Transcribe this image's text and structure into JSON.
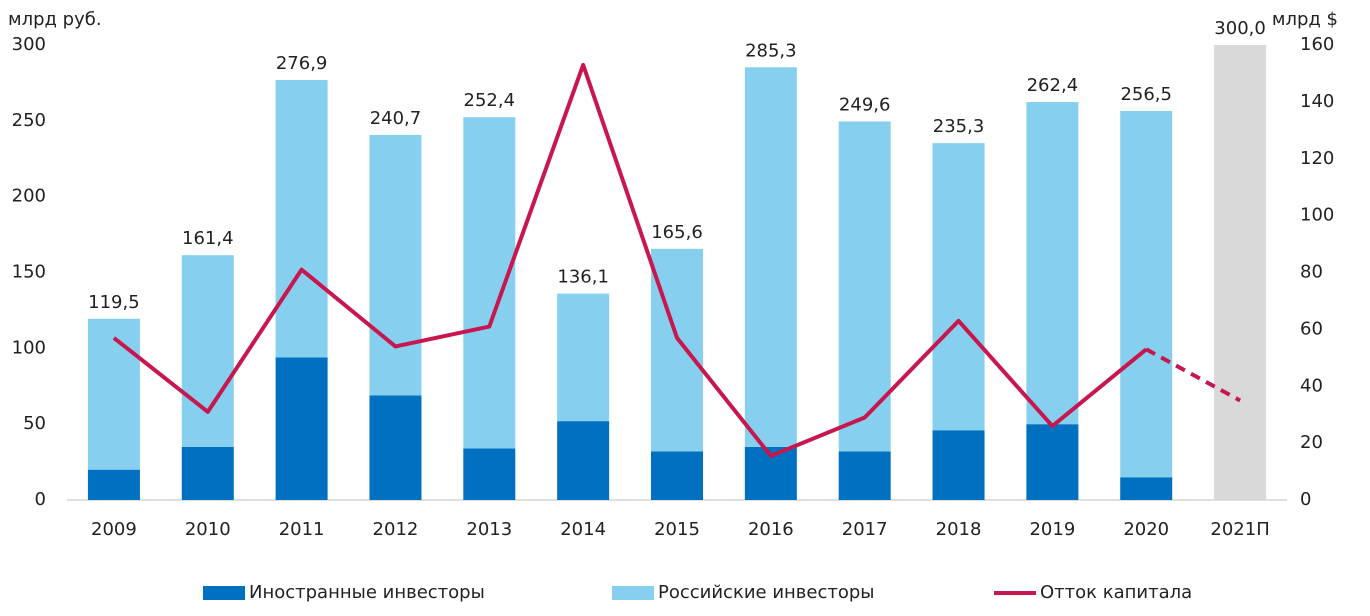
{
  "chart_data": {
    "type": "bar",
    "stacked": true,
    "ylabel": "млрд руб.",
    "y2label": "млрд $",
    "categories": [
      "2009",
      "2010",
      "2011",
      "2012",
      "2013",
      "2014",
      "2015",
      "2016",
      "2017",
      "2018",
      "2019",
      "2020",
      "2021П"
    ],
    "series": [
      {
        "name": "Иностранные инвесторы",
        "color": "#0070c0",
        "type": "bar",
        "values": [
          20,
          35,
          94,
          69,
          34,
          52,
          32,
          35,
          32,
          46,
          50,
          15,
          null
        ]
      },
      {
        "name": "Российские инвесторы",
        "color": "#87cfee",
        "type": "bar",
        "values": [
          99.5,
          126.4,
          182.9,
          171.7,
          218.4,
          84.1,
          133.6,
          250.3,
          217.6,
          189.3,
          212.4,
          241.5,
          null
        ]
      },
      {
        "name": "Отток капитала",
        "color": "#c8174f",
        "type": "line",
        "axis": "y2",
        "values": [
          57,
          31,
          81,
          54,
          61,
          153,
          57,
          15.5,
          29,
          63,
          26,
          53,
          35
        ]
      }
    ],
    "totals": {
      "values": [
        119.5,
        161.4,
        276.9,
        240.7,
        252.4,
        136.1,
        165.6,
        285.3,
        249.6,
        235.3,
        262.4,
        256.5,
        300
      ],
      "value_labels": [
        "119,5",
        "161,4",
        "276,9",
        "240,7",
        "252,4",
        "136,1",
        "165,6",
        "285,3",
        "249,6",
        "235,3",
        "262,4",
        "256,5",
        "300,0"
      ]
    },
    "forecast_color": "#d9d9d9",
    "ylim": [
      0,
      300
    ],
    "yticks": [
      0,
      50,
      100,
      150,
      200,
      250,
      300
    ],
    "y2lim": [
      0,
      160
    ],
    "y2ticks": [
      0,
      20,
      40,
      60,
      80,
      100,
      120,
      140,
      160
    ],
    "legend": "bottom"
  }
}
